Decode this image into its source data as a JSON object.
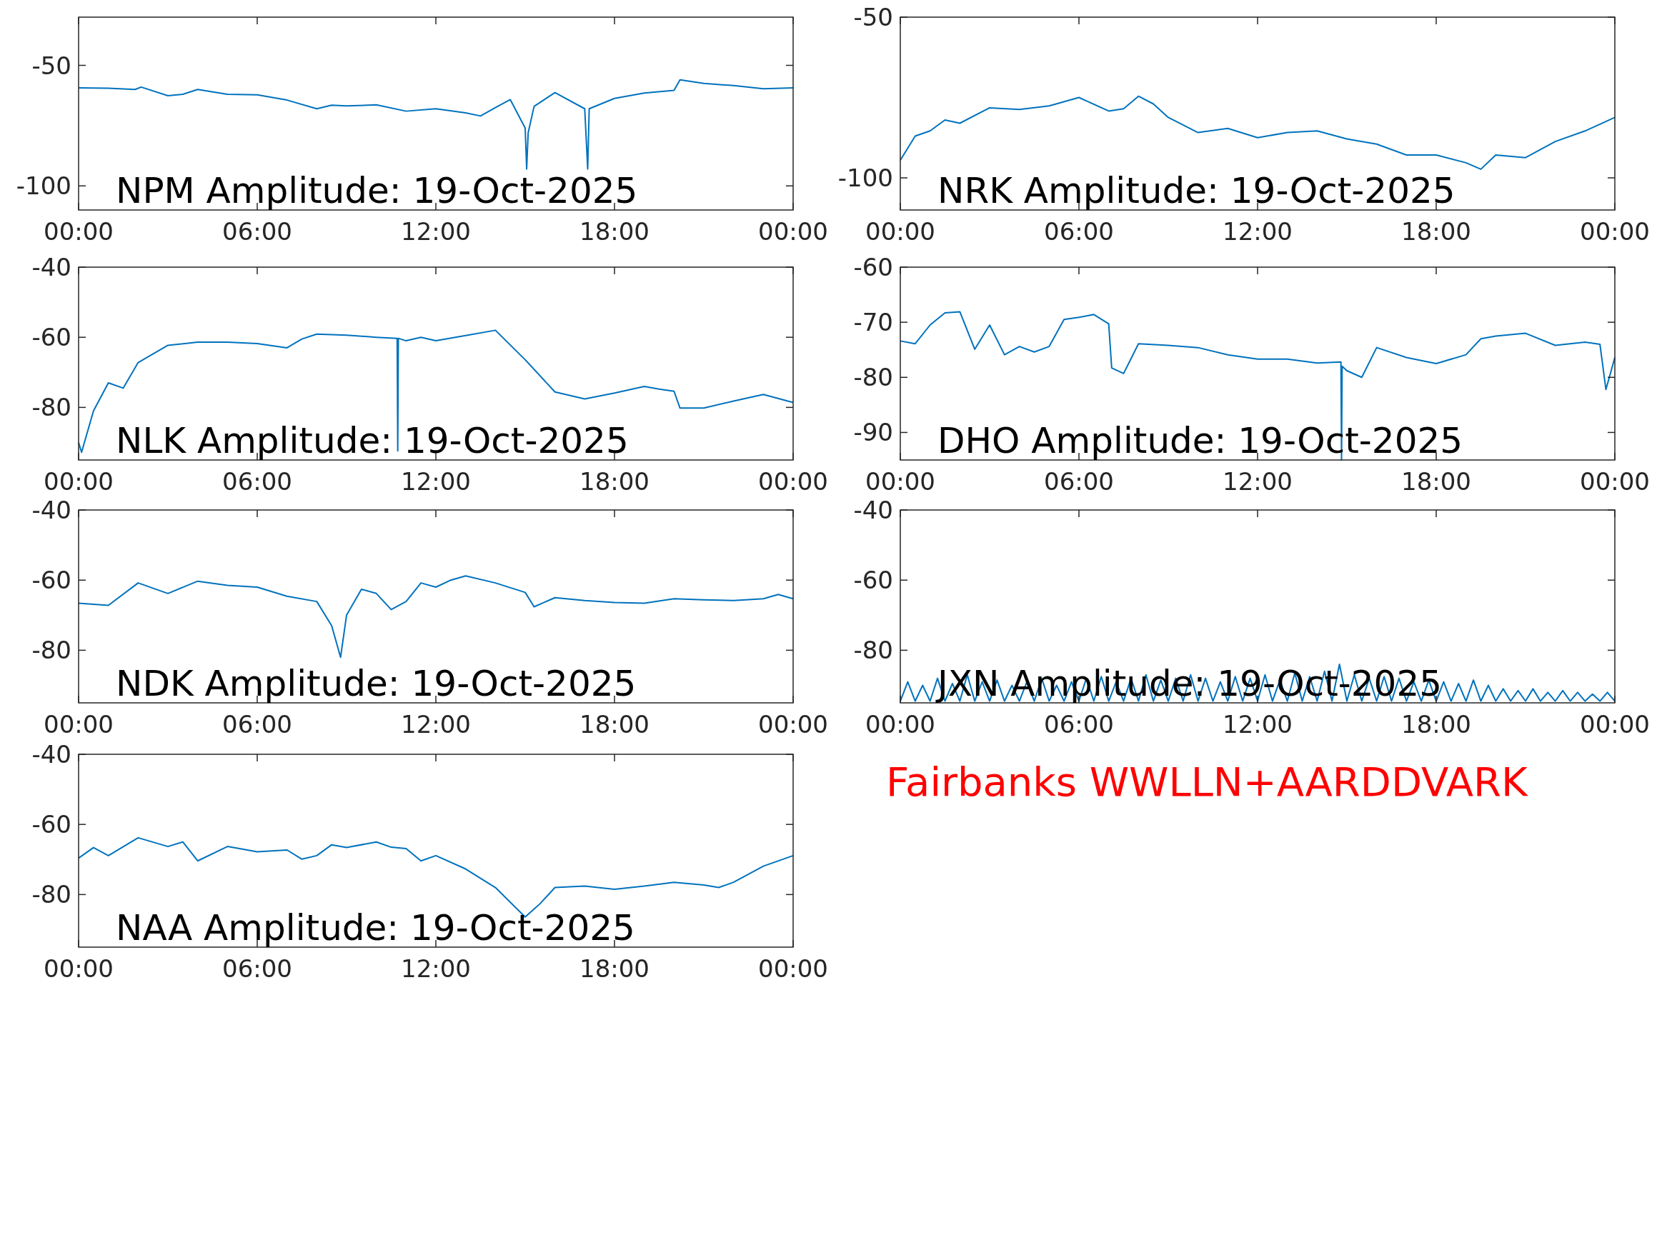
{
  "chart_data": [
    {
      "type": "line",
      "title": "NPM Amplitude: 19-Oct-2025",
      "color": "#0072bd",
      "xlim": [
        0,
        24
      ],
      "ylim": [
        -110,
        -30
      ],
      "yticks": [
        -50,
        -100
      ],
      "xticks": [
        {
          "value": 0,
          "label": "00:00"
        },
        {
          "value": 6,
          "label": "06:00"
        },
        {
          "value": 12,
          "label": "12:00"
        },
        {
          "value": 18,
          "label": "18:00"
        },
        {
          "value": 24,
          "label": "00:00"
        }
      ],
      "x": [
        0,
        1,
        1.9,
        2.1,
        3,
        3.5,
        4,
        5,
        6,
        7,
        8,
        8.5,
        9,
        10,
        11,
        12,
        13,
        13.5,
        14,
        14.5,
        15,
        15.05,
        15.1,
        15.3,
        16,
        17,
        17.1,
        17.15,
        18,
        19,
        20,
        20.2,
        21,
        22,
        23,
        24
      ],
      "values": [
        -59.3,
        -59.5,
        -60,
        -59,
        -62.6,
        -62,
        -60,
        -62,
        -62.2,
        -64.4,
        -68,
        -66.5,
        -66.8,
        -66.4,
        -69,
        -68,
        -69.7,
        -71,
        -67.5,
        -64.2,
        -76,
        -93,
        -78,
        -67,
        -61.3,
        -68,
        -93,
        -68,
        -63.7,
        -61.5,
        -60.4,
        -56,
        -57.5,
        -58.4,
        -59.7,
        -59.3
      ]
    },
    {
      "type": "line",
      "title": "NRK Amplitude: 19-Oct-2025",
      "color": "#0072bd",
      "xlim": [
        0,
        24
      ],
      "ylim": [
        -110,
        -50
      ],
      "yticks": [
        -50,
        -100
      ],
      "xticks": [
        {
          "value": 0,
          "label": "00:00"
        },
        {
          "value": 6,
          "label": "06:00"
        },
        {
          "value": 12,
          "label": "12:00"
        },
        {
          "value": 18,
          "label": "18:00"
        },
        {
          "value": 24,
          "label": "00:00"
        }
      ],
      "x": [
        0,
        0.5,
        1,
        1.5,
        2,
        3,
        4,
        5,
        6,
        7,
        7.5,
        8,
        8.5,
        9,
        10,
        11,
        12,
        13,
        14,
        15,
        16,
        17,
        18,
        19,
        19.5,
        20,
        21,
        22,
        23,
        24
      ],
      "values": [
        -94.5,
        -87,
        -85.4,
        -82,
        -83,
        -78.2,
        -78.7,
        -77.6,
        -75,
        -79.2,
        -78.5,
        -74.6,
        -77,
        -81.2,
        -85.9,
        -84.6,
        -87.5,
        -85.9,
        -85.4,
        -87.9,
        -89.5,
        -92.9,
        -92.9,
        -95.3,
        -97.3,
        -92.9,
        -93.7,
        -88.7,
        -85.4,
        -81.2
      ]
    },
    {
      "type": "line",
      "title": "NLK Amplitude: 19-Oct-2025",
      "color": "#0072bd",
      "xlim": [
        0,
        24
      ],
      "ylim": [
        -95,
        -40
      ],
      "yticks": [
        -40,
        -60,
        -80
      ],
      "xticks": [
        {
          "value": 0,
          "label": "00:00"
        },
        {
          "value": 6,
          "label": "06:00"
        },
        {
          "value": 12,
          "label": "12:00"
        },
        {
          "value": 18,
          "label": "18:00"
        },
        {
          "value": 24,
          "label": "00:00"
        }
      ],
      "x": [
        0,
        0.1,
        0.5,
        1,
        1.5,
        2,
        3,
        4,
        5,
        6,
        7,
        7.5,
        8,
        9,
        10,
        10.7,
        10.72,
        10.74,
        11,
        11.5,
        12,
        13,
        14,
        15,
        16,
        17,
        18,
        19,
        19.5,
        20,
        20.2,
        21,
        22,
        23,
        24
      ],
      "values": [
        -90,
        -92.8,
        -81,
        -73,
        -74.5,
        -67.2,
        -62.3,
        -61.4,
        -61.4,
        -61.8,
        -63,
        -60.5,
        -59.1,
        -59.4,
        -60,
        -60.3,
        -92.4,
        -60.3,
        -61,
        -60,
        -61,
        -59.5,
        -58,
        -66.4,
        -75.6,
        -77.6,
        -75.9,
        -74,
        -74.8,
        -75.4,
        -80.2,
        -80.2,
        -78.2,
        -76.3,
        -78.6
      ]
    },
    {
      "type": "line",
      "title": "DHO Amplitude: 19-Oct-2025",
      "color": "#0072bd",
      "xlim": [
        0,
        24
      ],
      "ylim": [
        -95,
        -60
      ],
      "yticks": [
        -60,
        -70,
        -80,
        -90
      ],
      "xticks": [
        {
          "value": 0,
          "label": "00:00"
        },
        {
          "value": 6,
          "label": "06:00"
        },
        {
          "value": 12,
          "label": "12:00"
        },
        {
          "value": 18,
          "label": "18:00"
        },
        {
          "value": 24,
          "label": "00:00"
        }
      ],
      "x": [
        0,
        0.5,
        1,
        1.5,
        2,
        2.5,
        3,
        3.5,
        4,
        4.5,
        5,
        5.5,
        6,
        6.5,
        7,
        7.1,
        7.5,
        8,
        9,
        10,
        11,
        12,
        13,
        14,
        14.8,
        14.82,
        14.84,
        15,
        15.5,
        16,
        17,
        18,
        19,
        19.5,
        20,
        21,
        22,
        23,
        23.5,
        23.7,
        24
      ],
      "values": [
        -73.4,
        -73.9,
        -70.5,
        -68.3,
        -68.1,
        -74.9,
        -70.5,
        -75.9,
        -74.4,
        -75.4,
        -74.4,
        -69.5,
        -69.1,
        -68.6,
        -70.3,
        -78.3,
        -79.3,
        -73.9,
        -74.2,
        -74.6,
        -75.9,
        -76.7,
        -76.7,
        -77.4,
        -77.2,
        -95,
        -78,
        -78.8,
        -80,
        -74.6,
        -76.4,
        -77.5,
        -75.9,
        -73,
        -72.5,
        -72,
        -74.2,
        -73.6,
        -74,
        -82.2,
        -76.4
      ]
    },
    {
      "type": "line",
      "title": "NDK Amplitude: 19-Oct-2025",
      "color": "#0072bd",
      "xlim": [
        0,
        24
      ],
      "ylim": [
        -95,
        -40
      ],
      "yticks": [
        -40,
        -60,
        -80
      ],
      "xticks": [
        {
          "value": 0,
          "label": "00:00"
        },
        {
          "value": 6,
          "label": "06:00"
        },
        {
          "value": 12,
          "label": "12:00"
        },
        {
          "value": 18,
          "label": "18:00"
        },
        {
          "value": 24,
          "label": "00:00"
        }
      ],
      "x": [
        0,
        1,
        2,
        3,
        4,
        5,
        6,
        7,
        8,
        8.5,
        8.8,
        9,
        9.5,
        10,
        10.5,
        11,
        11.5,
        12,
        12.5,
        13,
        14,
        15,
        15.3,
        16,
        17,
        18,
        19,
        20,
        21,
        22,
        23,
        23.5,
        24
      ],
      "values": [
        -66.6,
        -67.2,
        -60.8,
        -63.8,
        -60.3,
        -61.5,
        -62,
        -64.6,
        -66.1,
        -73,
        -82,
        -70,
        -62.6,
        -63.8,
        -68.4,
        -66.1,
        -60.8,
        -62,
        -60,
        -58.8,
        -60.8,
        -63.5,
        -67.6,
        -65,
        -65.8,
        -66.4,
        -66.6,
        -65.3,
        -65.6,
        -65.8,
        -65.3,
        -64.1,
        -65.3
      ]
    },
    {
      "type": "line",
      "title": "JXN Amplitude: 19-Oct-2025",
      "color": "#0072bd",
      "xlim": [
        0,
        24
      ],
      "ylim": [
        -95,
        -40
      ],
      "yticks": [
        -40,
        -60,
        -80
      ],
      "xticks": [
        {
          "value": 0,
          "label": "00:00"
        },
        {
          "value": 6,
          "label": "06:00"
        },
        {
          "value": 12,
          "label": "12:00"
        },
        {
          "value": 18,
          "label": "18:00"
        },
        {
          "value": 24,
          "label": "00:00"
        }
      ],
      "x": [
        0,
        0.25,
        0.5,
        0.75,
        1,
        1.25,
        1.5,
        1.75,
        2,
        2.25,
        2.5,
        2.75,
        3,
        3.25,
        3.5,
        3.75,
        4,
        4.25,
        4.5,
        4.75,
        5,
        5.25,
        5.5,
        5.75,
        6,
        6.25,
        6.5,
        6.75,
        7,
        7.25,
        7.5,
        7.75,
        8,
        8.25,
        8.5,
        8.75,
        9,
        9.25,
        9.5,
        9.75,
        10,
        10.25,
        10.5,
        10.75,
        11,
        11.25,
        11.5,
        11.75,
        12,
        12.25,
        12.5,
        12.75,
        13,
        13.25,
        13.5,
        13.75,
        14,
        14.25,
        14.5,
        14.75,
        15,
        15.25,
        15.5,
        15.75,
        16,
        16.25,
        16.5,
        16.75,
        17,
        17.25,
        17.5,
        17.75,
        18,
        18.25,
        18.5,
        18.75,
        19,
        19.25,
        19.5,
        19.75,
        20,
        20.25,
        20.5,
        20.75,
        21,
        21.25,
        21.5,
        21.75,
        22,
        22.25,
        22.5,
        22.75,
        23,
        23.25,
        23.5,
        23.75,
        24
      ],
      "values": [
        -94.5,
        -89,
        -94.5,
        -90,
        -94.5,
        -88,
        -94.5,
        -89.5,
        -94.5,
        -87,
        -94.5,
        -89,
        -94.5,
        -88.5,
        -94.5,
        -90,
        -94.5,
        -89,
        -94.5,
        -88,
        -94.5,
        -90,
        -94.5,
        -89,
        -94.5,
        -88,
        -94.5,
        -87.5,
        -94.5,
        -89,
        -94.5,
        -88,
        -94.5,
        -87,
        -94.5,
        -88.5,
        -94.5,
        -88,
        -94.5,
        -87,
        -94.5,
        -88,
        -94.5,
        -89,
        -94.5,
        -87.5,
        -94.5,
        -88,
        -94.5,
        -87,
        -94.5,
        -88.5,
        -94.5,
        -86.5,
        -94.5,
        -87.5,
        -94.5,
        -86,
        -94.5,
        -84,
        -94.5,
        -87,
        -94.5,
        -88,
        -94.5,
        -87.5,
        -94.5,
        -88,
        -94.5,
        -89,
        -94.5,
        -88.5,
        -94.5,
        -89,
        -94.5,
        -89.5,
        -94.5,
        -88.5,
        -94.5,
        -90,
        -94.5,
        -91,
        -94.5,
        -91.5,
        -94.5,
        -91,
        -94.5,
        -92,
        -94.5,
        -91.5,
        -94.5,
        -92,
        -94.5,
        -92.5,
        -94.5,
        -92,
        -94.5
      ]
    },
    {
      "type": "line",
      "title": "NAA Amplitude: 19-Oct-2025",
      "color": "#0072bd",
      "xlim": [
        0,
        24
      ],
      "ylim": [
        -95,
        -40
      ],
      "yticks": [
        -40,
        -60,
        -80
      ],
      "xticks": [
        {
          "value": 0,
          "label": "00:00"
        },
        {
          "value": 6,
          "label": "06:00"
        },
        {
          "value": 12,
          "label": "12:00"
        },
        {
          "value": 18,
          "label": "18:00"
        },
        {
          "value": 24,
          "label": "00:00"
        }
      ],
      "x": [
        0,
        0.5,
        1,
        2,
        3,
        3.5,
        4,
        5,
        6,
        7,
        7.5,
        8,
        8.5,
        9,
        10,
        10.5,
        11,
        11.5,
        12,
        13,
        14,
        15,
        15.5,
        16,
        17,
        18,
        19,
        20,
        21,
        21.5,
        22,
        23,
        24
      ],
      "values": [
        -69.6,
        -66.6,
        -68.9,
        -63.8,
        -66.3,
        -65,
        -70.4,
        -66.3,
        -67.8,
        -67.3,
        -69.9,
        -68.9,
        -65.8,
        -66.6,
        -65,
        -66.5,
        -66.9,
        -70.4,
        -68.9,
        -72.7,
        -78,
        -86.4,
        -82.6,
        -78,
        -77.6,
        -78.5,
        -77.6,
        -76.5,
        -77.3,
        -78,
        -76.5,
        -71.9,
        -68.9
      ]
    },
    {
      "type": "other",
      "annotations": [
        "Fairbanks WWLLN+AARDDVARK"
      ]
    }
  ]
}
